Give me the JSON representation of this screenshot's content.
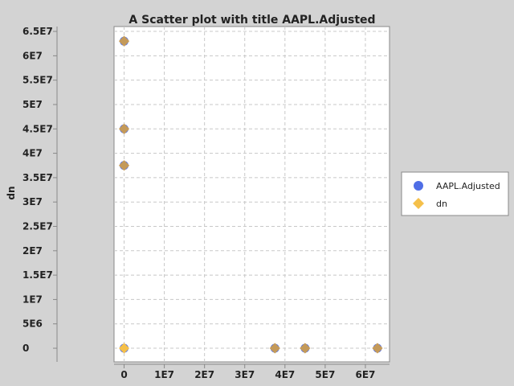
{
  "chart_data": {
    "type": "scatter",
    "title": "A Scatter plot with title AAPL.Adjusted",
    "xlabel": "",
    "ylabel": "dn",
    "xlim": [
      -2500000,
      66000000
    ],
    "ylim": [
      -2800000,
      66000000
    ],
    "x_ticks": [
      {
        "value": 0,
        "label": "0"
      },
      {
        "value": 10000000,
        "label": "1E7"
      },
      {
        "value": 20000000,
        "label": "2E7"
      },
      {
        "value": 30000000,
        "label": "3E7"
      },
      {
        "value": 40000000,
        "label": "4E7"
      },
      {
        "value": 50000000,
        "label": "5E7"
      },
      {
        "value": 60000000,
        "label": "6E7"
      }
    ],
    "y_ticks": [
      {
        "value": 0,
        "label": "0"
      },
      {
        "value": 5000000,
        "label": "5E6"
      },
      {
        "value": 10000000,
        "label": "1E7"
      },
      {
        "value": 15000000,
        "label": "1.5E7"
      },
      {
        "value": 20000000,
        "label": "2E7"
      },
      {
        "value": 25000000,
        "label": "2.5E7"
      },
      {
        "value": 30000000,
        "label": "3E7"
      },
      {
        "value": 35000000,
        "label": "3.5E7"
      },
      {
        "value": 40000000,
        "label": "4E7"
      },
      {
        "value": 45000000,
        "label": "4.5E7"
      },
      {
        "value": 50000000,
        "label": "5E7"
      },
      {
        "value": 55000000,
        "label": "5.5E7"
      },
      {
        "value": 60000000,
        "label": "6E7"
      },
      {
        "value": 65000000,
        "label": "6.5E7"
      }
    ],
    "grid": true,
    "legend_position": "right",
    "series": [
      {
        "name": "AAPL.Adjusted",
        "marker": "circle",
        "color": "#4f6ee6",
        "points": [
          {
            "x": 0,
            "y": 63000000
          },
          {
            "x": 0,
            "y": 45000000
          },
          {
            "x": 0,
            "y": 37500000
          },
          {
            "x": 0,
            "y": 0
          },
          {
            "x": 37500000,
            "y": 0
          },
          {
            "x": 45000000,
            "y": 0
          },
          {
            "x": 63000000,
            "y": 0
          }
        ]
      },
      {
        "name": "dn",
        "marker": "diamond",
        "color": "#f5c04a",
        "points": [
          {
            "x": 0,
            "y": 63000000
          },
          {
            "x": 0,
            "y": 45000000
          },
          {
            "x": 0,
            "y": 37500000
          },
          {
            "x": 0,
            "y": 0
          },
          {
            "x": 37500000,
            "y": 0
          },
          {
            "x": 45000000,
            "y": 0
          },
          {
            "x": 63000000,
            "y": 0
          }
        ]
      }
    ]
  },
  "colors": {
    "background": "#d3d3d3",
    "plot_background": "#ffffff",
    "grid": "#c8c8c8",
    "overlap_marker": "#c49a5a"
  }
}
